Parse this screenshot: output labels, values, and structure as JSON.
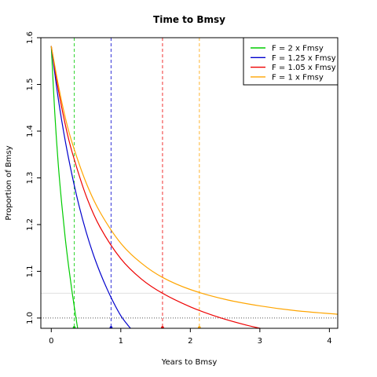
{
  "chart_data": {
    "type": "line",
    "title": "Time to Bmsy",
    "xlabel": "Years to Bmsy",
    "ylabel": "Proportion of Bmsy",
    "xlim": [
      -0.15,
      4.12
    ],
    "ylim": [
      0.978,
      1.6
    ],
    "xticks": [
      "0",
      "1",
      "2",
      "3",
      "4"
    ],
    "yticks": [
      "1.0",
      "1.1",
      "1.2",
      "1.3",
      "1.4",
      "1.5",
      "1.6"
    ],
    "xtick_values": [
      0,
      1,
      2,
      3,
      4
    ],
    "ytick_values": [
      1.0,
      1.1,
      1.2,
      1.3,
      1.4,
      1.5,
      1.6
    ],
    "legend_position": "top-right",
    "hline_dotted": 1.0,
    "hline_light": 1.053,
    "series": [
      {
        "name": "F = 2 x Fmsy",
        "color": "#00cc00",
        "x": [
          0,
          0.05,
          0.1,
          0.15,
          0.2,
          0.25,
          0.3,
          0.35,
          0.4
        ],
        "y": [
          1.582,
          1.44,
          1.33,
          1.245,
          1.172,
          1.11,
          1.055,
          1.005,
          0.96
        ],
        "vline": 0.33
      },
      {
        "name": "F = 1.25 x Fmsy",
        "color": "#0000cc",
        "x": [
          0,
          0.1,
          0.2,
          0.3,
          0.4,
          0.5,
          0.6,
          0.7,
          0.8,
          0.9,
          1.0,
          1.1,
          1.2
        ],
        "y": [
          1.582,
          1.47,
          1.38,
          1.305,
          1.24,
          1.185,
          1.138,
          1.098,
          1.063,
          1.032,
          1.005,
          0.985,
          0.968
        ],
        "vline": 0.86
      },
      {
        "name": "F = 1.05 x Fmsy",
        "color": "#ee0000",
        "x": [
          0,
          0.1,
          0.2,
          0.3,
          0.5,
          0.7,
          1.0,
          1.3,
          1.6,
          2.0,
          2.4,
          2.8,
          3.1
        ],
        "y": [
          1.582,
          1.49,
          1.415,
          1.355,
          1.262,
          1.195,
          1.127,
          1.083,
          1.053,
          1.024,
          1.002,
          0.985,
          0.975
        ],
        "vline": 1.6
      },
      {
        "name": "F = 1 x Fmsy",
        "color": "#ffa500",
        "x": [
          0,
          0.1,
          0.2,
          0.3,
          0.5,
          0.7,
          1.0,
          1.3,
          1.6,
          2.0,
          2.5,
          3.0,
          3.5,
          4.12
        ],
        "y": [
          1.582,
          1.5,
          1.43,
          1.375,
          1.29,
          1.227,
          1.16,
          1.117,
          1.087,
          1.061,
          1.04,
          1.026,
          1.016,
          1.008
        ],
        "vline": 2.13
      }
    ]
  }
}
